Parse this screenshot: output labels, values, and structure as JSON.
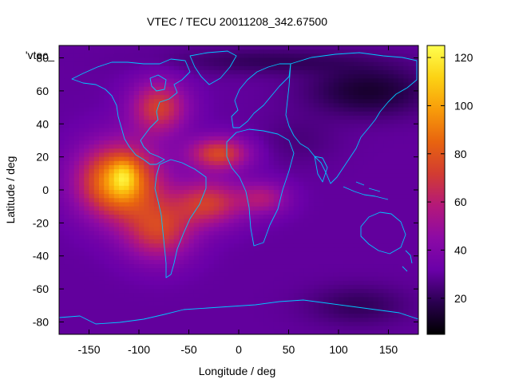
{
  "chart_data": {
    "type": "heatmap",
    "title": "VTEC / TECU 20011208_342.67500",
    "xlabel": "Longitude / deg",
    "ylabel": "Latitude / deg",
    "series_label": "'vtec_",
    "xlim": [
      -180,
      180
    ],
    "ylim": [
      -87.5,
      87.5
    ],
    "xticks": [
      -150,
      -100,
      -50,
      0,
      50,
      100,
      150
    ],
    "yticks": [
      -80,
      -60,
      -40,
      -20,
      0,
      20,
      40,
      60,
      80
    ],
    "colorbar": {
      "range": [
        5,
        125
      ],
      "ticks": [
        20,
        40,
        60,
        80,
        100,
        120
      ],
      "palette": [
        "#000000",
        "#2a0050",
        "#6a00a8",
        "#8c0aa5",
        "#b4187a",
        "#d23c32",
        "#e8640f",
        "#f89c0a",
        "#fcd214",
        "#ffff50"
      ]
    },
    "grid": {
      "dlon": 5,
      "dlat": 2.5
    },
    "field": {
      "background": 30,
      "components": [
        {
          "lon": -120,
          "lat": 5,
          "value": 72,
          "slon": 40,
          "slat": 22
        },
        {
          "lon": -80,
          "lat": -25,
          "value": 40,
          "slon": 35,
          "slat": 18
        },
        {
          "lon": -30,
          "lat": -8,
          "value": 40,
          "slon": 35,
          "slat": 14
        },
        {
          "lon": 25,
          "lat": -5,
          "value": 25,
          "slon": 25,
          "slat": 10
        },
        {
          "lon": -80,
          "lat": 50,
          "value": 42,
          "slon": 28,
          "slat": 16
        },
        {
          "lon": -20,
          "lat": 22,
          "value": 45,
          "slon": 30,
          "slat": 10
        },
        {
          "lon": -115,
          "lat": 8,
          "value": 20,
          "slon": 12,
          "slat": 10
        },
        {
          "lon": 130,
          "lat": 60,
          "value": -17,
          "slon": 60,
          "slat": 15
        },
        {
          "lon": 30,
          "lat": 78,
          "value": -10,
          "slon": 100,
          "slat": 8
        },
        {
          "lon": 60,
          "lat": 30,
          "value": -5,
          "slon": 40,
          "slat": 15
        },
        {
          "lon": 120,
          "lat": -70,
          "value": -10,
          "slon": 50,
          "slat": 12
        }
      ]
    }
  }
}
